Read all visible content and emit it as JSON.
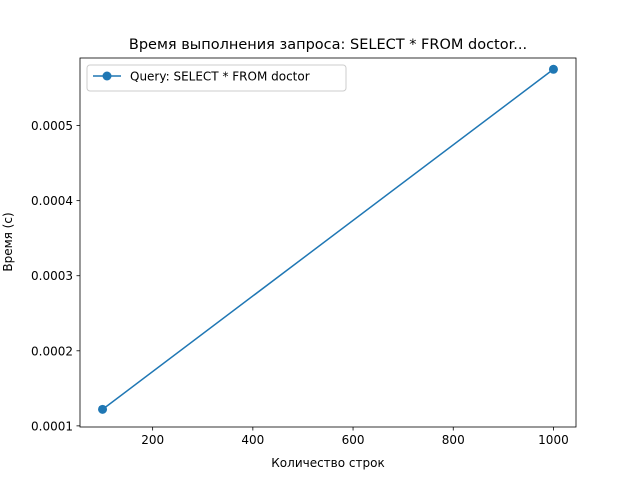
{
  "chart_data": {
    "type": "line",
    "title": "Время выполнения запроса: SELECT * FROM doctor...",
    "xlabel": "Количество строк",
    "ylabel": "Время (с)",
    "xlim": [
      55,
      1045
    ],
    "ylim": [
      9.85e-05,
      0.00059
    ],
    "xticks": [
      200,
      400,
      600,
      800,
      1000
    ],
    "xtick_labels": [
      "200",
      "400",
      "600",
      "800",
      "1000"
    ],
    "yticks": [
      0.0001,
      0.0002,
      0.0003,
      0.0004,
      0.0005
    ],
    "ytick_labels": [
      "0.0001",
      "0.0002",
      "0.0003",
      "0.0004",
      "0.0005"
    ],
    "grid": false,
    "legend_position": "upper-left",
    "series": [
      {
        "name": "Query: SELECT * FROM doctor",
        "color": "#1f77b4",
        "marker": "circle",
        "x": [
          100,
          1000
        ],
        "y": [
          0.000122,
          0.000575
        ]
      }
    ]
  }
}
